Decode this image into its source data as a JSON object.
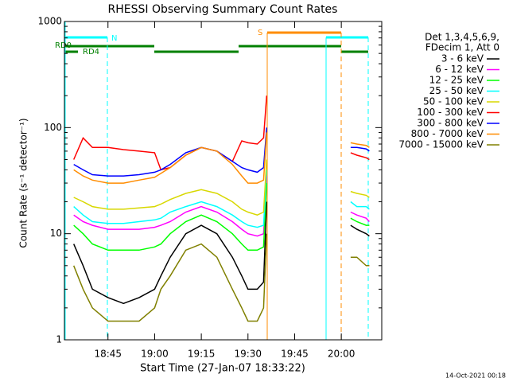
{
  "chart_data": {
    "type": "line",
    "title": "RHESSI Observing Summary Count Rates",
    "xlabel": "Start Time (27-Jan-07 18:33:22)",
    "ylabel": "Count Rate (s⁻¹ detector⁻¹)",
    "legend_header": [
      "Det 1,3,4,5,6,9,",
      "FDecim 1, Att 0"
    ],
    "annotations": [
      "N",
      "S",
      "RD0",
      "RD4"
    ],
    "footer": "14-Oct-2021 00:18",
    "log_y": true,
    "xlim": [
      "18:31",
      "20:13"
    ],
    "xticks": [
      "18:45",
      "19:00",
      "19:15",
      "19:30",
      "19:45",
      "20:00"
    ],
    "ylim": [
      1,
      1000
    ],
    "yticks": [
      1,
      10,
      100,
      1000
    ],
    "x": [
      "18:34",
      "18:37",
      "18:40",
      "18:45",
      "18:50",
      "18:55",
      "19:00",
      "19:02",
      "19:05",
      "19:10",
      "19:15",
      "19:20",
      "19:25",
      "19:28",
      "19:30",
      "19:33",
      "19:35",
      "19:36",
      "19:50",
      "20:03",
      "20:05",
      "20:08",
      "20:09"
    ],
    "series": [
      {
        "name": "3 - 6 keV",
        "color": "#000000",
        "values": [
          8,
          5,
          3,
          2.5,
          2.2,
          2.5,
          3,
          4,
          6,
          10,
          12,
          10,
          6,
          4,
          3,
          3,
          3.5,
          20,
          null,
          12,
          11,
          10,
          9.5
        ]
      },
      {
        "name": "6 - 12 keV",
        "color": "#ff00ff",
        "values": [
          15,
          13,
          12,
          11,
          11,
          11,
          11.5,
          12,
          13,
          16,
          18,
          16,
          13,
          11,
          10,
          9.5,
          10,
          35,
          null,
          16,
          15,
          14,
          13
        ]
      },
      {
        "name": "12 - 25 keV",
        "color": "#00ff00",
        "values": [
          12,
          10,
          8,
          7,
          7,
          7,
          7.5,
          8,
          10,
          13,
          15,
          13,
          10,
          8,
          7,
          7,
          7.5,
          30,
          null,
          14,
          13,
          12,
          12
        ]
      },
      {
        "name": "25 - 50 keV",
        "color": "#00ffff",
        "values": [
          18,
          15,
          13,
          12.5,
          12.5,
          13,
          13.5,
          14,
          16,
          18,
          20,
          18,
          15,
          13,
          12,
          11.5,
          12,
          40,
          null,
          20,
          18,
          18,
          17
        ]
      },
      {
        "name": "50 - 100 keV",
        "color": "#d8d800",
        "values": [
          22,
          20,
          18,
          17,
          17,
          17.5,
          18,
          19,
          21,
          24,
          26,
          24,
          20,
          17,
          16,
          15,
          16,
          50,
          null,
          25,
          24,
          23,
          22
        ]
      },
      {
        "name": "100 - 300 keV",
        "color": "#ff0000",
        "values": [
          50,
          80,
          65,
          65,
          62,
          60,
          58,
          40,
          42,
          55,
          65,
          60,
          48,
          75,
          72,
          70,
          80,
          200,
          null,
          58,
          55,
          52,
          50
        ]
      },
      {
        "name": "300 - 800 keV",
        "color": "#0000ff",
        "values": [
          45,
          40,
          36,
          35,
          35,
          36,
          38,
          40,
          45,
          58,
          65,
          60,
          48,
          42,
          40,
          38,
          42,
          100,
          null,
          65,
          65,
          63,
          60
        ]
      },
      {
        "name": "800 - 7000 keV",
        "color": "#ff8c00",
        "values": [
          40,
          35,
          32,
          30,
          30,
          32,
          34,
          37,
          42,
          55,
          65,
          60,
          45,
          35,
          30,
          30,
          32,
          90,
          null,
          72,
          70,
          68,
          65
        ]
      },
      {
        "name": "7000 - 15000 keV",
        "color": "#808000",
        "values": [
          5,
          3,
          2,
          1.5,
          1.5,
          1.5,
          2,
          3,
          4,
          7,
          8,
          6,
          3,
          2,
          1.5,
          1.5,
          2,
          10,
          null,
          6,
          6,
          5,
          5
        ]
      }
    ]
  }
}
